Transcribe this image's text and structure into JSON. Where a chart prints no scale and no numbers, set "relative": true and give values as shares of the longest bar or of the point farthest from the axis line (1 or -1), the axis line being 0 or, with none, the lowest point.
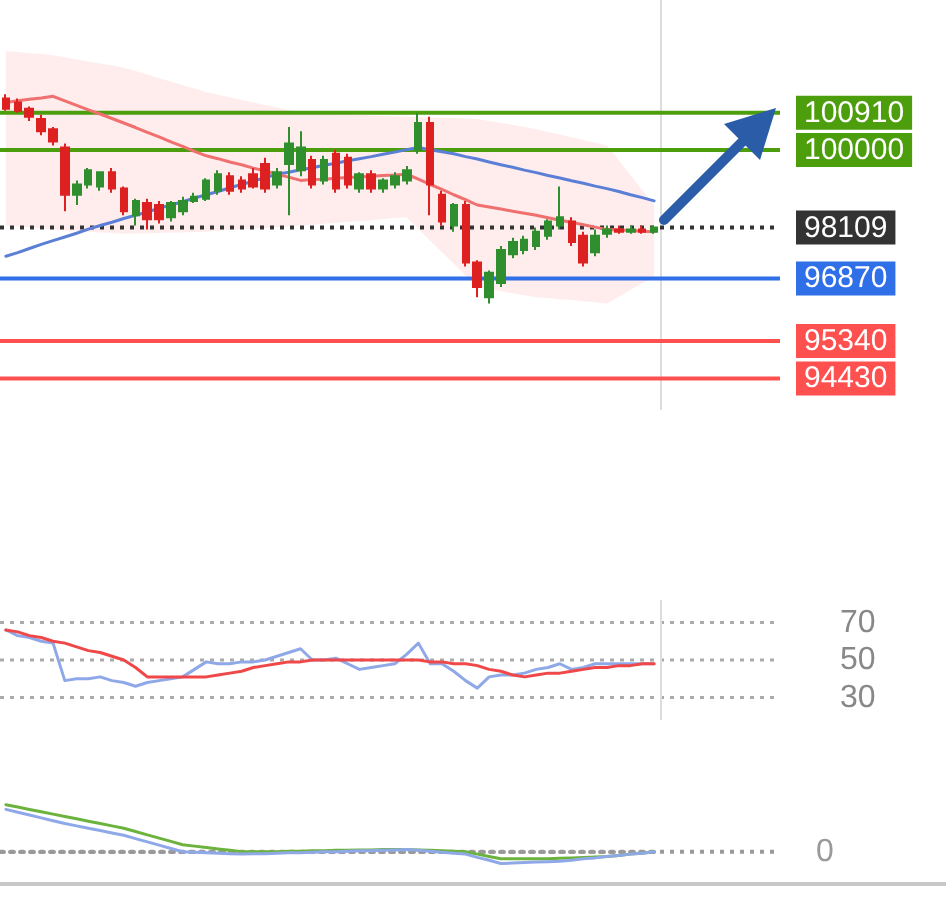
{
  "chart_data": [
    {
      "type": "candlestick",
      "categories": [
        null,
        null,
        null,
        null,
        null,
        null,
        null,
        null,
        null,
        null,
        null,
        null,
        null,
        null,
        null,
        null,
        null,
        null,
        null,
        null,
        null,
        null,
        null,
        null,
        null,
        null,
        null,
        null,
        null,
        null,
        null,
        null,
        null,
        null,
        null,
        null,
        null,
        null,
        null,
        null,
        null,
        null,
        null,
        null,
        null,
        null,
        null,
        null,
        null,
        null,
        null,
        null,
        null,
        null,
        null,
        null
      ],
      "ohlc": [
        [
          101260,
          101360,
          100960,
          101010
        ],
        [
          101160,
          101260,
          100910,
          100960
        ],
        [
          101010,
          101060,
          100710,
          100810
        ],
        [
          100760,
          100860,
          100360,
          100460
        ],
        [
          100510,
          100560,
          100110,
          100210
        ],
        [
          100060,
          100160,
          98510,
          98910
        ],
        [
          98910,
          99260,
          98660,
          99160
        ],
        [
          99160,
          99560,
          99060,
          99510
        ],
        [
          99110,
          99460,
          99010,
          99460
        ],
        [
          99460,
          99560,
          98960,
          99060
        ],
        [
          99060,
          99110,
          98410,
          98510
        ],
        [
          98410,
          98810,
          98160,
          98760
        ],
        [
          98710,
          98810,
          98060,
          98310
        ],
        [
          98660,
          98760,
          98210,
          98310
        ],
        [
          98360,
          98760,
          98260,
          98710
        ],
        [
          98510,
          98860,
          98410,
          98760
        ],
        [
          98760,
          98960,
          98710,
          98860
        ],
        [
          98810,
          99310,
          98760,
          99260
        ],
        [
          99010,
          99510,
          98910,
          99410
        ],
        [
          99360,
          99460,
          98910,
          99010
        ],
        [
          99260,
          99360,
          98960,
          99060
        ],
        [
          99410,
          99560,
          99060,
          99110
        ],
        [
          99660,
          99810,
          98960,
          99060
        ],
        [
          99160,
          99560,
          99060,
          99460
        ],
        [
          99660,
          100560,
          98410,
          100160
        ],
        [
          99510,
          100460,
          99360,
          100060
        ],
        [
          99760,
          99860,
          99060,
          99160
        ],
        [
          99260,
          99860,
          99160,
          99760
        ],
        [
          99910,
          100010,
          98960,
          99060
        ],
        [
          99810,
          99910,
          99060,
          99160
        ],
        [
          99060,
          99460,
          98960,
          99410
        ],
        [
          99410,
          99510,
          98960,
          99060
        ],
        [
          99060,
          99310,
          98960,
          99260
        ],
        [
          99160,
          99460,
          99060,
          99360
        ],
        [
          99260,
          99610,
          99160,
          99510
        ],
        [
          100010,
          100910,
          99910,
          100660
        ],
        [
          100660,
          100810,
          98410,
          99160
        ],
        [
          98910,
          99010,
          98160,
          98260
        ],
        [
          98160,
          98710,
          98010,
          98660
        ],
        [
          98660,
          98760,
          97160,
          97260
        ],
        [
          97260,
          97310,
          96410,
          96660
        ],
        [
          96410,
          97060,
          96260,
          97010
        ],
        [
          96760,
          97660,
          96660,
          97560
        ],
        [
          97460,
          97860,
          97360,
          97760
        ],
        [
          97560,
          97910,
          97460,
          97810
        ],
        [
          97660,
          98110,
          97560,
          98010
        ],
        [
          97910,
          98310,
          97810,
          98260
        ],
        [
          98160,
          99110,
          98060,
          98360
        ],
        [
          98260,
          98360,
          97660,
          97760
        ],
        [
          97910,
          98010,
          97160,
          97260
        ],
        [
          97510,
          98060,
          97410,
          97910
        ],
        [
          97960,
          98160,
          97860,
          98060
        ],
        [
          98060,
          98160,
          97960,
          98010
        ],
        [
          98010,
          98160,
          97960,
          98060
        ],
        [
          98060,
          98160,
          97960,
          98010
        ],
        [
          98010,
          98160,
          97960,
          98110
        ]
      ],
      "series": [
        {
          "type": "line",
          "color": "#5b7fd6",
          "values": [
            97410,
            97500,
            97600,
            97700,
            97790,
            97880,
            97970,
            98070,
            98160,
            98240,
            98330,
            98410,
            98490,
            98580,
            98660,
            98740,
            98830,
            98910,
            98990,
            99080,
            99160,
            99240,
            99330,
            99410,
            99460,
            99520,
            99570,
            99630,
            99680,
            99740,
            99790,
            99840,
            99900,
            99950,
            100010,
            100060,
            100010,
            99960,
            99910,
            99840,
            99780,
            99710,
            99640,
            99580,
            99510,
            99450,
            99380,
            99320,
            99250,
            99190,
            99120,
            99060,
            98990,
            98910,
            98840,
            98760
          ]
        },
        {
          "type": "line",
          "color": "#f07070",
          "values": [
            101160,
            101200,
            101240,
            101270,
            101310,
            101200,
            101090,
            100980,
            100880,
            100770,
            100660,
            100550,
            100430,
            100320,
            100200,
            100090,
            99970,
            99860,
            99790,
            99710,
            99640,
            99560,
            99490,
            99410,
            99340,
            99260,
            99280,
            99290,
            99310,
            99330,
            99340,
            99360,
            99380,
            99390,
            99410,
            99290,
            99160,
            99040,
            98910,
            98790,
            98660,
            98610,
            98560,
            98510,
            98460,
            98410,
            98350,
            98290,
            98240,
            98180,
            98120,
            98060,
            98050,
            98040,
            98020,
            98010
          ],
          "lower": [
            98160,
            98140,
            98110,
            98090,
            98060,
            98040,
            98030,
            98010,
            97990,
            97980,
            97960,
            97970,
            97970,
            97980,
            97990,
            97990,
            98000,
            98010,
            98030,
            98050,
            98070,
            98090,
            98100,
            98120,
            98140,
            98160,
            98180,
            98200,
            98230,
            98250,
            98270,
            98290,
            98320,
            98340,
            98360,
            98080,
            97790,
            97510,
            97230,
            96940,
            96660,
            96610,
            96560,
            96510,
            96460,
            96410,
            96390,
            96360,
            96340,
            96310,
            96290,
            96260,
            96420,
            96590,
            96750,
            96910
          ],
          "upper": [
            102410,
            102390,
            102360,
            102340,
            102310,
            102260,
            102210,
            102160,
            102110,
            102060,
            102010,
            101930,
            101840,
            101750,
            101670,
            101580,
            101500,
            101410,
            101350,
            101290,
            101220,
            101160,
            101100,
            101040,
            100970,
            100910,
            100900,
            100890,
            100880,
            100870,
            100860,
            100840,
            100830,
            100820,
            100810,
            100800,
            100790,
            100790,
            100780,
            100770,
            100760,
            100710,
            100660,
            100610,
            100560,
            100510,
            100440,
            100380,
            100310,
            100240,
            100180,
            100110,
            99750,
            99380,
            99020,
            98660
          ]
        }
      ],
      "ylim": [
        93660,
        103660
      ],
      "yticks": [
        100910,
        100000,
        98109,
        96870,
        95340,
        94430
      ],
      "tick_labels": "y",
      "ref_lines": [
        {
          "axis": "y",
          "value": 100910,
          "color": "#4c9e0c"
        },
        {
          "axis": "y",
          "value": 100000,
          "color": "#4c9e0c"
        },
        {
          "axis": "y",
          "value": 98109,
          "color": "#333333",
          "line_style": "dotted"
        },
        {
          "axis": "y",
          "value": 96870,
          "color": "#2f6fe8"
        },
        {
          "axis": "y",
          "value": 95340,
          "color": "#ff5050"
        },
        {
          "axis": "y",
          "value": 94430,
          "color": "#ff5050"
        }
      ]
    },
    {
      "type": "line",
      "categories": [
        null,
        null,
        null,
        null,
        null,
        null,
        null,
        null,
        null,
        null,
        null,
        null,
        null,
        null,
        null,
        null,
        null,
        null,
        null,
        null,
        null,
        null,
        null,
        null,
        null,
        null,
        null,
        null,
        null,
        null,
        null,
        null,
        null,
        null,
        null,
        null,
        null,
        null,
        null,
        null,
        null,
        null,
        null,
        null,
        null,
        null,
        null,
        null,
        null,
        null,
        null,
        null,
        null,
        null,
        null,
        null
      ],
      "series": [
        {
          "color": "#8fa8e8",
          "values": [
            66,
            63,
            62,
            60,
            59,
            39,
            40,
            40,
            41,
            39,
            38,
            36,
            38,
            39,
            40,
            41,
            45,
            49,
            48,
            48,
            49,
            49,
            50,
            52,
            54,
            56,
            50,
            50,
            51,
            48,
            45,
            46,
            47,
            48,
            53,
            59,
            48,
            48,
            44,
            39,
            35,
            41,
            42,
            42,
            43,
            45,
            46,
            48,
            45,
            46,
            48,
            48,
            48,
            48,
            48,
            48
          ]
        },
        {
          "color": "#f04848",
          "values": [
            66,
            65,
            63,
            62,
            60,
            59,
            57,
            55,
            54,
            52,
            50,
            46,
            41,
            41,
            41,
            41,
            41,
            41,
            42,
            43,
            44,
            46,
            47,
            48,
            49,
            49,
            50,
            50,
            50,
            50,
            50,
            50,
            50,
            50,
            50,
            50,
            49,
            49,
            48,
            48,
            47,
            45,
            44,
            42,
            41,
            42,
            43,
            43,
            44,
            45,
            46,
            46,
            47,
            47,
            48,
            48
          ]
        }
      ],
      "ylim": [
        18,
        82
      ],
      "yticks": [
        70,
        50,
        30
      ],
      "grid": "y",
      "tick_labels": "y"
    },
    {
      "type": "line",
      "relative": true,
      "categories": [
        null,
        null,
        null,
        null,
        null,
        null,
        null,
        null,
        null,
        null,
        null,
        null,
        null,
        null,
        null,
        null,
        null,
        null,
        null,
        null,
        null,
        null,
        null,
        null,
        null,
        null,
        null,
        null,
        null,
        null,
        null,
        null,
        null,
        null,
        null,
        null,
        null,
        null,
        null,
        null,
        null,
        null,
        null,
        null,
        null,
        null,
        null,
        null,
        null,
        null,
        null,
        null,
        null,
        null,
        null,
        null
      ],
      "series": [
        {
          "color": "#6cb33e",
          "values": [
            1,
            0.95,
            0.9,
            0.85,
            0.8,
            0.75,
            0.7,
            0.65,
            0.6,
            0.55,
            0.5,
            0.43,
            0.36,
            0.29,
            0.22,
            0.15,
            0.12,
            0.09,
            0.06,
            0.03,
            0,
            0,
            0,
            0,
            0.01,
            0.01,
            0.02,
            0.02,
            0.03,
            0.03,
            0.04,
            0.04,
            0.05,
            0.05,
            0.05,
            0.04,
            0.03,
            0.02,
            0.01,
            0,
            -0.05,
            -0.1,
            -0.15,
            -0.15,
            -0.15,
            -0.15,
            -0.15,
            -0.14,
            -0.13,
            -0.12,
            -0.11,
            -0.1,
            -0.08,
            -0.05,
            -0.03,
            0
          ]
        },
        {
          "color": "#8fa8e8",
          "values": [
            0.9,
            0.84,
            0.78,
            0.72,
            0.66,
            0.6,
            0.55,
            0.5,
            0.45,
            0.4,
            0.35,
            0.28,
            0.21,
            0.14,
            0.07,
            0,
            -0.01,
            -0.02,
            -0.03,
            -0.04,
            -0.05,
            -0.04,
            -0.04,
            -0.03,
            -0.02,
            -0.02,
            -0.01,
            0,
            0,
            0.01,
            0.02,
            0.02,
            0.03,
            0.04,
            0.05,
            0.03,
            0.01,
            -0.01,
            -0.03,
            -0.05,
            -0.12,
            -0.18,
            -0.25,
            -0.24,
            -0.23,
            -0.22,
            -0.21,
            -0.2,
            -0.18,
            -0.15,
            -0.13,
            -0.1,
            -0.08,
            -0.05,
            -0.03,
            0
          ]
        }
      ],
      "tick_labels": false,
      "ref_lines": [
        {
          "axis": "y",
          "value": 0,
          "label": "0",
          "color": "#9a9a9a",
          "line_style": "dotted"
        }
      ]
    }
  ]
}
